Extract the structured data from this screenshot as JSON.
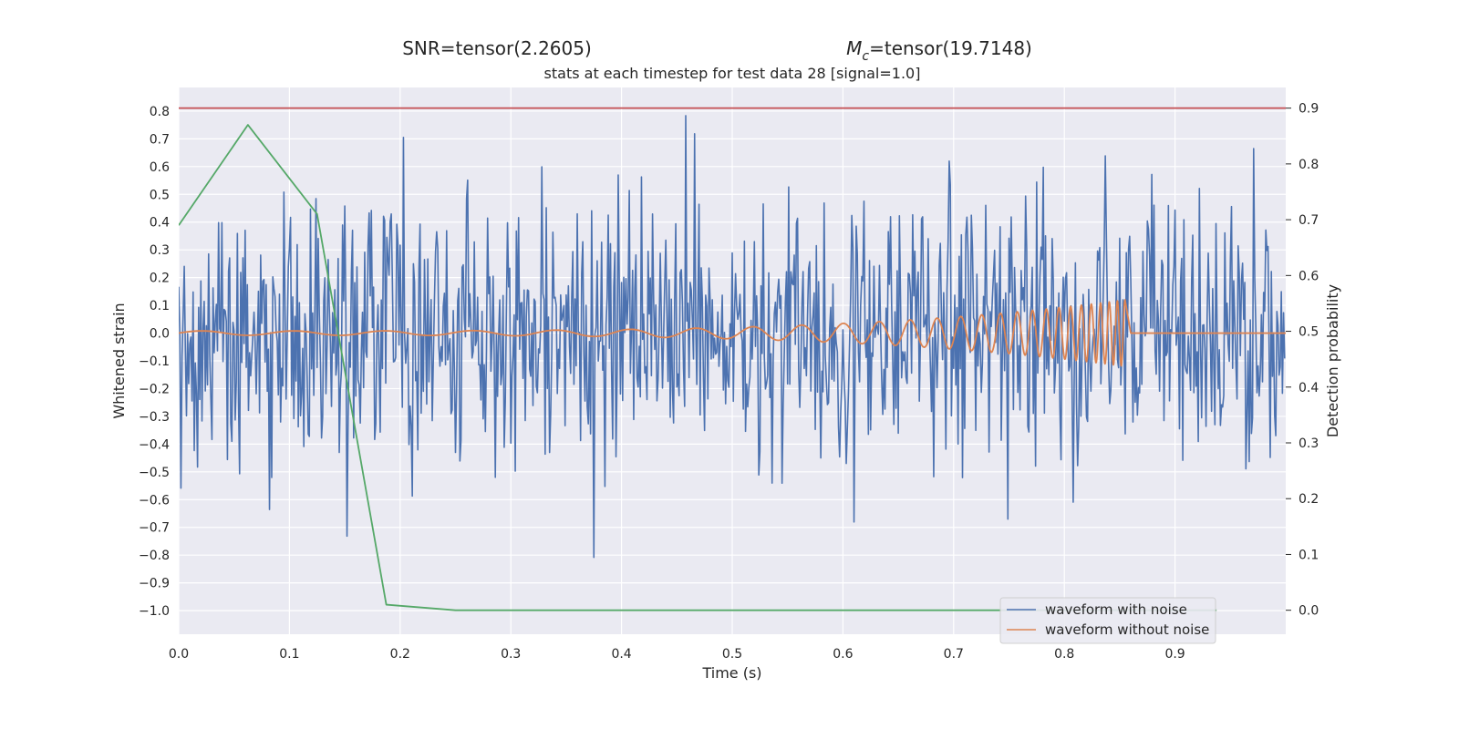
{
  "chart_data": {
    "type": "line",
    "suptitle_left": "SNR=tensor(2.2605)",
    "suptitle_right_prefix": "M",
    "suptitle_right_sub": "c",
    "suptitle_right_suffix": "=tensor(19.7148)",
    "title": "stats at each timestep for test data 28 [signal=1.0]",
    "xlabel": "Time (s)",
    "ylabel": "Whitened strain",
    "ylabel_right": "Detection probability",
    "xlim": [
      0.0,
      1.0
    ],
    "ylim": [
      -1.085,
      0.885
    ],
    "ylim_right": [
      -0.043,
      0.937
    ],
    "x_ticks": [
      "0.0",
      "0.1",
      "0.2",
      "0.3",
      "0.4",
      "0.5",
      "0.6",
      "0.7",
      "0.8",
      "0.9"
    ],
    "y_ticks": [
      "0.8",
      "0.7",
      "0.6",
      "0.5",
      "0.4",
      "0.3",
      "0.2",
      "0.1",
      "0.0",
      "−0.1",
      "−0.2",
      "−0.3",
      "−0.4",
      "−0.5",
      "−0.6",
      "−0.7",
      "−0.8",
      "−0.9",
      "−1.0"
    ],
    "y_ticks_right": [
      "0.9",
      "0.8",
      "0.7",
      "0.6",
      "0.5",
      "0.4",
      "0.3",
      "0.2",
      "0.1",
      "0.0"
    ],
    "grid": true,
    "legend_position": "lower-right",
    "series": [
      {
        "name": "waveform with noise",
        "axis": "left",
        "color": "#4c72b0",
        "generator": "noise",
        "sample_count": 1000,
        "amplitude_std": 0.24,
        "clip": [
          -1.0,
          0.8
        ]
      },
      {
        "name": "waveform without noise",
        "axis": "left",
        "color": "#dd8452",
        "generator": "chirp",
        "t_start": 0.0,
        "t_end": 0.855,
        "samples_per_cycle": 24,
        "frequency_start_hz": 12,
        "frequency_end_hz": 150,
        "amplitude_start": 0.008,
        "amplitude_end": 0.12
      },
      {
        "axis": "right",
        "color": "#55a868",
        "x": [
          0.0,
          0.0625,
          0.125,
          0.1875,
          0.25,
          0.3125,
          0.375,
          0.4375,
          0.5,
          0.5625,
          0.625,
          0.6875,
          0.75,
          0.8125,
          0.875,
          0.9375
        ],
        "y": [
          0.69,
          0.87,
          0.71,
          0.01,
          0.0,
          0.0,
          0.0,
          0.0,
          0.0,
          0.0,
          0.0,
          0.0,
          0.0,
          0.0,
          0.0,
          0.0
        ]
      },
      {
        "axis": "right",
        "color": "#c44e52",
        "x": [
          0.0,
          1.0
        ],
        "y": [
          0.9,
          0.9
        ]
      }
    ]
  }
}
